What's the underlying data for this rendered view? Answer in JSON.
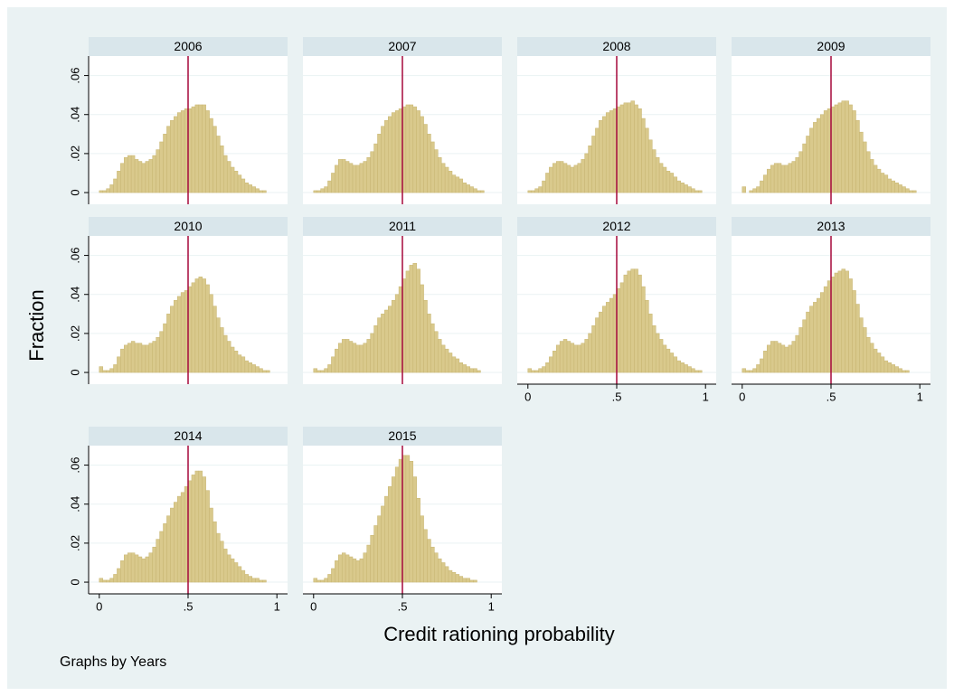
{
  "chart_data": {
    "type": "histogram",
    "ylabel": "Fraction",
    "xlabel": "Credit rationing probability",
    "note": "Graphs by Years",
    "xlim": [
      -0.06,
      1.06
    ],
    "ylim": [
      -0.006,
      0.07
    ],
    "xticks": [
      0,
      {
        "value": 0.5,
        "label": ".5"
      },
      1
    ],
    "yticks": [
      0,
      {
        "value": 0.02,
        "label": ".02"
      },
      {
        "value": 0.04,
        "label": ".04"
      },
      {
        "value": 0.06,
        "label": ".06"
      }
    ],
    "grid": true,
    "color": "#d9c98c",
    "xline": 0.5,
    "xline_color": "#a5093c",
    "bins": [
      0,
      0.02,
      0.04,
      0.06,
      0.08,
      0.1,
      0.12,
      0.14,
      0.16,
      0.18,
      0.2,
      0.22,
      0.24,
      0.26,
      0.28,
      0.3,
      0.32,
      0.34,
      0.36,
      0.38,
      0.4,
      0.42,
      0.44,
      0.46,
      0.48,
      0.5,
      0.52,
      0.54,
      0.56,
      0.58,
      0.6,
      0.62,
      0.64,
      0.66,
      0.68,
      0.7,
      0.72,
      0.74,
      0.76,
      0.78,
      0.8,
      0.82,
      0.84,
      0.86,
      0.88,
      0.9,
      0.92,
      0.94,
      0.96,
      0.98,
      1
    ],
    "panels": [
      {
        "title": "2006",
        "values": [
          0.001,
          0.001,
          0.002,
          0.004,
          0.007,
          0.011,
          0.015,
          0.018,
          0.019,
          0.019,
          0.017,
          0.016,
          0.015,
          0.016,
          0.017,
          0.019,
          0.022,
          0.026,
          0.03,
          0.034,
          0.037,
          0.039,
          0.041,
          0.042,
          0.043,
          0.043,
          0.044,
          0.045,
          0.045,
          0.045,
          0.042,
          0.038,
          0.034,
          0.029,
          0.024,
          0.019,
          0.016,
          0.013,
          0.011,
          0.009,
          0.007,
          0.005,
          0.004,
          0.003,
          0.002,
          0.001,
          0.001,
          0,
          0,
          0
        ]
      },
      {
        "title": "2007",
        "values": [
          0.001,
          0.001,
          0.002,
          0.003,
          0.006,
          0.01,
          0.014,
          0.017,
          0.017,
          0.016,
          0.015,
          0.014,
          0.014,
          0.015,
          0.016,
          0.018,
          0.021,
          0.025,
          0.03,
          0.034,
          0.037,
          0.039,
          0.041,
          0.042,
          0.043,
          0.044,
          0.045,
          0.045,
          0.044,
          0.042,
          0.039,
          0.035,
          0.03,
          0.026,
          0.022,
          0.018,
          0.015,
          0.013,
          0.011,
          0.009,
          0.008,
          0.007,
          0.005,
          0.004,
          0.003,
          0.002,
          0.001,
          0.001,
          0,
          0
        ]
      },
      {
        "title": "2008",
        "values": [
          0.001,
          0.001,
          0.002,
          0.003,
          0.006,
          0.01,
          0.013,
          0.015,
          0.016,
          0.016,
          0.015,
          0.014,
          0.013,
          0.014,
          0.015,
          0.017,
          0.02,
          0.024,
          0.029,
          0.033,
          0.037,
          0.039,
          0.041,
          0.042,
          0.043,
          0.044,
          0.045,
          0.046,
          0.046,
          0.047,
          0.045,
          0.043,
          0.038,
          0.033,
          0.027,
          0.022,
          0.018,
          0.015,
          0.013,
          0.011,
          0.01,
          0.008,
          0.006,
          0.005,
          0.004,
          0.003,
          0.002,
          0.001,
          0.001,
          0
        ]
      },
      {
        "title": "2009",
        "values": [
          0.003,
          0,
          0.001,
          0.002,
          0.003,
          0.006,
          0.009,
          0.012,
          0.014,
          0.015,
          0.015,
          0.014,
          0.014,
          0.015,
          0.016,
          0.018,
          0.021,
          0.025,
          0.029,
          0.033,
          0.036,
          0.038,
          0.04,
          0.042,
          0.043,
          0.044,
          0.045,
          0.046,
          0.047,
          0.047,
          0.045,
          0.042,
          0.037,
          0.031,
          0.026,
          0.021,
          0.017,
          0.014,
          0.012,
          0.01,
          0.009,
          0.007,
          0.006,
          0.005,
          0.004,
          0.003,
          0.002,
          0.001,
          0.001,
          0
        ]
      },
      {
        "title": "2010",
        "values": [
          0.003,
          0.001,
          0.001,
          0.002,
          0.004,
          0.008,
          0.012,
          0.014,
          0.015,
          0.016,
          0.015,
          0.015,
          0.014,
          0.014,
          0.015,
          0.016,
          0.018,
          0.021,
          0.025,
          0.03,
          0.034,
          0.037,
          0.039,
          0.041,
          0.042,
          0.044,
          0.046,
          0.048,
          0.049,
          0.048,
          0.045,
          0.04,
          0.034,
          0.028,
          0.023,
          0.019,
          0.016,
          0.013,
          0.011,
          0.009,
          0.008,
          0.006,
          0.005,
          0.004,
          0.003,
          0.002,
          0.001,
          0.001,
          0,
          0
        ]
      },
      {
        "title": "2011",
        "values": [
          0.002,
          0.001,
          0.001,
          0.002,
          0.004,
          0.008,
          0.012,
          0.015,
          0.017,
          0.017,
          0.016,
          0.015,
          0.014,
          0.014,
          0.015,
          0.017,
          0.02,
          0.024,
          0.028,
          0.03,
          0.032,
          0.034,
          0.037,
          0.04,
          0.044,
          0.048,
          0.052,
          0.055,
          0.056,
          0.053,
          0.045,
          0.037,
          0.03,
          0.025,
          0.021,
          0.017,
          0.014,
          0.012,
          0.01,
          0.008,
          0.007,
          0.005,
          0.004,
          0.003,
          0.002,
          0.002,
          0.001,
          0,
          0,
          0
        ]
      },
      {
        "title": "2012",
        "values": [
          0.002,
          0.001,
          0.001,
          0.002,
          0.003,
          0.005,
          0.008,
          0.011,
          0.014,
          0.016,
          0.017,
          0.016,
          0.015,
          0.014,
          0.014,
          0.015,
          0.017,
          0.02,
          0.024,
          0.028,
          0.031,
          0.034,
          0.036,
          0.038,
          0.04,
          0.043,
          0.046,
          0.05,
          0.052,
          0.053,
          0.053,
          0.05,
          0.044,
          0.037,
          0.03,
          0.024,
          0.02,
          0.017,
          0.014,
          0.012,
          0.01,
          0.008,
          0.006,
          0.005,
          0.004,
          0.003,
          0.002,
          0.001,
          0.001,
          0
        ]
      },
      {
        "title": "2013",
        "values": [
          0.002,
          0.001,
          0.001,
          0.002,
          0.004,
          0.007,
          0.011,
          0.014,
          0.016,
          0.016,
          0.015,
          0.014,
          0.013,
          0.014,
          0.016,
          0.019,
          0.023,
          0.027,
          0.031,
          0.034,
          0.036,
          0.038,
          0.041,
          0.044,
          0.047,
          0.049,
          0.051,
          0.052,
          0.053,
          0.052,
          0.048,
          0.042,
          0.035,
          0.028,
          0.023,
          0.018,
          0.015,
          0.012,
          0.01,
          0.008,
          0.006,
          0.005,
          0.004,
          0.003,
          0.002,
          0.001,
          0.001,
          0,
          0,
          0
        ]
      },
      {
        "title": "2014",
        "values": [
          0.002,
          0.001,
          0.001,
          0.002,
          0.004,
          0.007,
          0.011,
          0.014,
          0.015,
          0.015,
          0.014,
          0.013,
          0.012,
          0.013,
          0.015,
          0.018,
          0.022,
          0.026,
          0.03,
          0.034,
          0.038,
          0.041,
          0.044,
          0.046,
          0.049,
          0.052,
          0.055,
          0.057,
          0.057,
          0.054,
          0.047,
          0.038,
          0.031,
          0.025,
          0.021,
          0.017,
          0.014,
          0.012,
          0.01,
          0.008,
          0.006,
          0.004,
          0.003,
          0.002,
          0.002,
          0.001,
          0.001,
          0,
          0,
          0
        ]
      },
      {
        "title": "2015",
        "values": [
          0.002,
          0.001,
          0.001,
          0.002,
          0.004,
          0.007,
          0.011,
          0.014,
          0.015,
          0.014,
          0.013,
          0.012,
          0.011,
          0.012,
          0.015,
          0.019,
          0.024,
          0.029,
          0.034,
          0.039,
          0.044,
          0.049,
          0.054,
          0.059,
          0.063,
          0.065,
          0.065,
          0.062,
          0.054,
          0.043,
          0.034,
          0.027,
          0.022,
          0.018,
          0.015,
          0.012,
          0.01,
          0.008,
          0.006,
          0.005,
          0.004,
          0.003,
          0.002,
          0.002,
          0.001,
          0.001,
          0,
          0,
          0,
          0
        ]
      }
    ]
  }
}
